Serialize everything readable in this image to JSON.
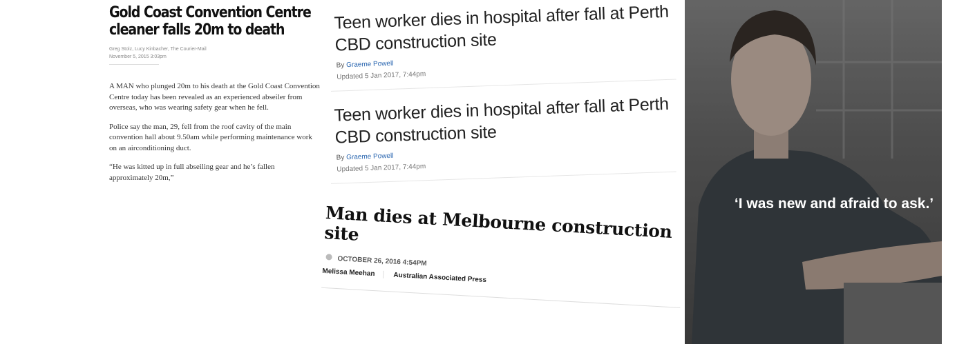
{
  "clipping_1": {
    "headline": "Gold Coast Convention Centre cleaner falls 20m to death",
    "authors": "Greg Stolz, Lucy Kinbacher, The Courier-Mail",
    "date": "November 5, 2015 3:03pm",
    "paragraphs": [
      "A MAN who plunged 20m to his death at the Gold Coast Convention Centre today has been revealed as an experienced abseiler from overseas, who was wearing safety gear when he fell.",
      "Police say the man, 29, fell from the roof cavity of the main convention hall about 9.50am while performing maintenance work on an airconditioning duct.",
      "“He was kitted up in full abseiling gear and he’s fallen approximately 20m,”"
    ]
  },
  "clipping_2": {
    "headline": "Teen worker dies in hospital after fall at Perth CBD construction site",
    "by": "By",
    "author": "Graeme Powell",
    "updated": "Updated 5 Jan 2017, 7:44pm"
  },
  "clipping_3": {
    "headline": "Teen worker dies in hospital after fall at Perth CBD construction site",
    "by": "By",
    "author": "Graeme Powell",
    "updated": "Updated 5 Jan 2017, 7:44pm"
  },
  "clipping_4": {
    "headline": "Man dies at Melbourne construction site",
    "date": "OCTOBER 26, 2016 4:54PM",
    "author": "Melissa Meehan",
    "source": "Australian Associated Press"
  },
  "poster": {
    "quote": "‘I was new and afraid to ask.’"
  }
}
